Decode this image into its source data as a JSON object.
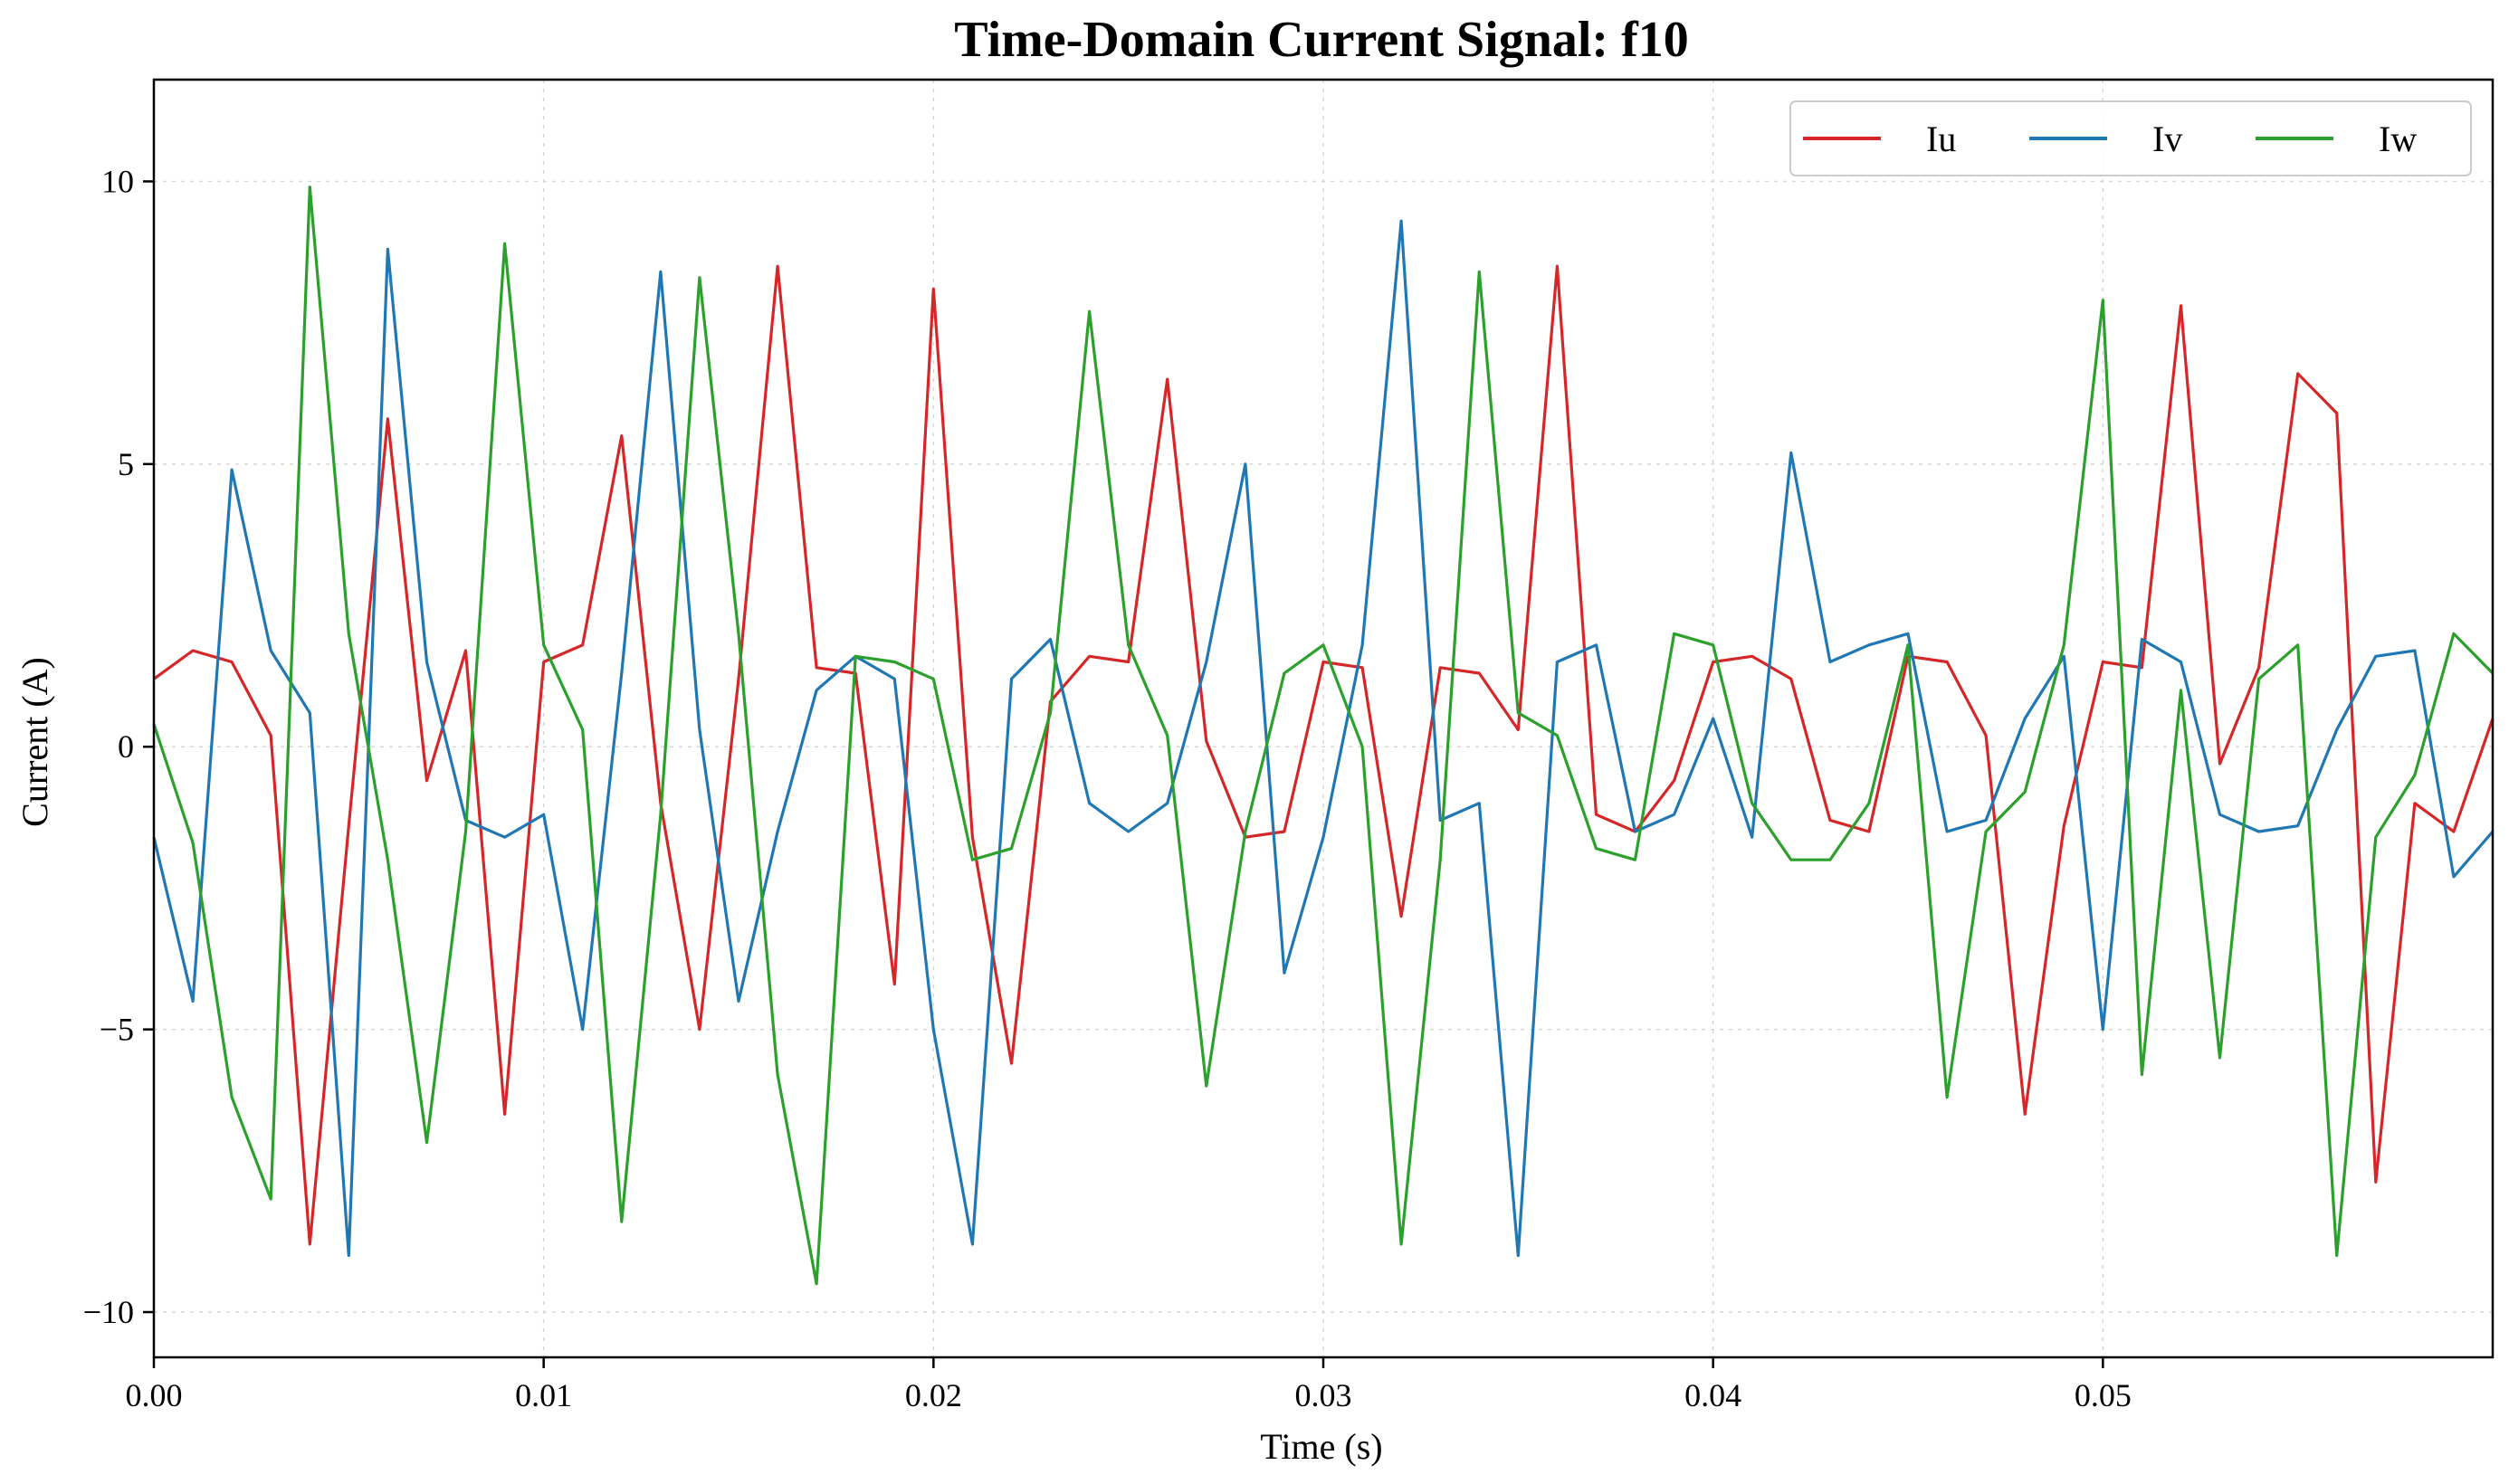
{
  "chart_data": {
    "type": "line",
    "title": "Time-Domain Current Signal: f10",
    "xlabel": "Time (s)",
    "ylabel": "Current (A)",
    "xlim": [
      0.0,
      0.06
    ],
    "ylim": [
      -10.8,
      11.8
    ],
    "xticks": [
      0.0,
      0.01,
      0.02,
      0.03,
      0.04,
      0.05
    ],
    "xtick_labels": [
      "0.00",
      "0.01",
      "0.02",
      "0.03",
      "0.04",
      "0.05"
    ],
    "yticks": [
      -10,
      -5,
      0,
      5,
      10
    ],
    "ytick_labels": [
      "−10",
      "−5",
      "0",
      "5",
      "10"
    ],
    "grid": true,
    "legend_position": "top-right",
    "series": [
      {
        "name": "Iu",
        "color": "#d62728",
        "x": [
          0.0,
          0.001,
          0.002,
          0.003,
          0.004,
          0.005,
          0.006,
          0.007,
          0.008,
          0.009,
          0.01,
          0.011,
          0.012,
          0.013,
          0.014,
          0.015,
          0.016,
          0.017,
          0.018,
          0.019,
          0.02,
          0.021,
          0.022,
          0.023,
          0.024,
          0.025,
          0.026,
          0.027,
          0.028,
          0.029,
          0.03,
          0.031,
          0.032,
          0.033,
          0.034,
          0.035,
          0.036,
          0.037,
          0.038,
          0.039,
          0.04,
          0.041,
          0.042,
          0.043,
          0.044,
          0.045,
          0.046,
          0.047,
          0.048,
          0.049,
          0.05,
          0.051,
          0.052,
          0.053,
          0.054,
          0.055,
          0.056,
          0.057,
          0.058,
          0.059,
          0.06
        ],
        "y": [
          1.2,
          1.7,
          1.5,
          0.2,
          -8.8,
          -1.4,
          5.8,
          -0.6,
          1.7,
          -6.5,
          1.5,
          1.8,
          5.5,
          -1.0,
          -5.0,
          1.2,
          8.5,
          1.4,
          1.3,
          -4.2,
          8.1,
          -1.6,
          -5.6,
          0.8,
          1.6,
          1.5,
          6.5,
          0.1,
          -1.6,
          -1.5,
          1.5,
          1.4,
          -3.0,
          1.4,
          1.3,
          0.3,
          8.5,
          -1.2,
          -1.5,
          -0.6,
          1.5,
          1.6,
          1.2,
          -1.3,
          -1.5,
          1.6,
          1.5,
          0.2,
          -6.5,
          -1.4,
          1.5,
          1.4,
          7.8,
          -0.3,
          1.4,
          6.6,
          5.9,
          -7.7,
          -1.0,
          -1.5,
          0.5
        ]
      },
      {
        "name": "Iv",
        "color": "#1f77b4",
        "x": [
          0.0,
          0.001,
          0.002,
          0.003,
          0.004,
          0.005,
          0.006,
          0.007,
          0.008,
          0.009,
          0.01,
          0.011,
          0.012,
          0.013,
          0.014,
          0.015,
          0.016,
          0.017,
          0.018,
          0.019,
          0.02,
          0.021,
          0.022,
          0.023,
          0.024,
          0.025,
          0.026,
          0.027,
          0.028,
          0.029,
          0.03,
          0.031,
          0.032,
          0.033,
          0.034,
          0.035,
          0.036,
          0.037,
          0.038,
          0.039,
          0.04,
          0.041,
          0.042,
          0.043,
          0.044,
          0.045,
          0.046,
          0.047,
          0.048,
          0.049,
          0.05,
          0.051,
          0.052,
          0.053,
          0.054,
          0.055,
          0.056,
          0.057,
          0.058,
          0.059,
          0.06
        ],
        "y": [
          -1.6,
          -4.5,
          4.9,
          1.7,
          0.6,
          -9.0,
          8.8,
          1.5,
          -1.3,
          -1.6,
          -1.2,
          -5.0,
          1.3,
          8.4,
          0.3,
          -4.5,
          -1.5,
          1.0,
          1.6,
          1.2,
          -5.0,
          -8.8,
          1.2,
          1.9,
          -1.0,
          -1.5,
          -1.0,
          1.5,
          5.0,
          -4.0,
          -1.6,
          1.8,
          9.3,
          -1.3,
          -1.0,
          -9.0,
          1.5,
          1.8,
          -1.5,
          -1.2,
          0.5,
          -1.6,
          5.2,
          1.5,
          1.8,
          2.0,
          -1.5,
          -1.3,
          0.5,
          1.6,
          -5.0,
          1.9,
          1.5,
          -1.2,
          -1.5,
          -1.4,
          0.3,
          1.6,
          1.7,
          -2.3,
          -1.5
        ]
      },
      {
        "name": "Iw",
        "color": "#2ca02c",
        "x": [
          0.0,
          0.001,
          0.002,
          0.003,
          0.004,
          0.005,
          0.006,
          0.007,
          0.008,
          0.009,
          0.01,
          0.011,
          0.012,
          0.013,
          0.014,
          0.015,
          0.016,
          0.017,
          0.018,
          0.019,
          0.02,
          0.021,
          0.022,
          0.023,
          0.024,
          0.025,
          0.026,
          0.027,
          0.028,
          0.029,
          0.03,
          0.031,
          0.032,
          0.033,
          0.034,
          0.035,
          0.036,
          0.037,
          0.038,
          0.039,
          0.04,
          0.041,
          0.042,
          0.043,
          0.044,
          0.045,
          0.046,
          0.047,
          0.048,
          0.049,
          0.05,
          0.051,
          0.052,
          0.053,
          0.054,
          0.055,
          0.056,
          0.057,
          0.058,
          0.059,
          0.06
        ],
        "y": [
          0.4,
          -1.7,
          -6.2,
          -8.0,
          9.9,
          2.0,
          -2.0,
          -7.0,
          -1.5,
          8.9,
          1.8,
          0.3,
          -8.4,
          -1.2,
          8.3,
          2.0,
          -5.8,
          -9.5,
          1.6,
          1.5,
          1.2,
          -2.0,
          -1.8,
          0.6,
          7.7,
          1.8,
          0.2,
          -6.0,
          -1.5,
          1.3,
          1.8,
          0.0,
          -8.8,
          -2.0,
          8.4,
          0.6,
          0.2,
          -1.8,
          -2.0,
          2.0,
          1.8,
          -1.0,
          -2.0,
          -2.0,
          -1.0,
          1.8,
          -6.2,
          -1.5,
          -0.8,
          1.8,
          7.9,
          -5.8,
          1.0,
          -5.5,
          1.2,
          1.8,
          -9.0,
          -1.6,
          -0.5,
          2.0,
          1.3
        ]
      }
    ]
  }
}
